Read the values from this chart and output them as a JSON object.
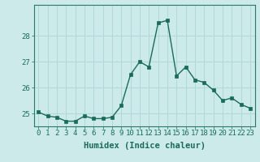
{
  "x": [
    0,
    1,
    2,
    3,
    4,
    5,
    6,
    7,
    8,
    9,
    10,
    11,
    12,
    13,
    14,
    15,
    16,
    17,
    18,
    19,
    20,
    21,
    22,
    23
  ],
  "y": [
    25.05,
    24.9,
    24.85,
    24.7,
    24.7,
    24.9,
    24.8,
    24.8,
    24.85,
    25.3,
    26.5,
    27.0,
    26.8,
    28.5,
    28.6,
    26.45,
    26.8,
    26.3,
    26.2,
    25.9,
    25.5,
    25.6,
    25.35,
    25.2
  ],
  "line_color": "#1a6b5a",
  "marker": "s",
  "marker_size": 2.5,
  "bg_color": "#cceaea",
  "grid_color": "#b0d8d8",
  "xlabel": "Humidex (Indice chaleur)",
  "ylim": [
    24.5,
    29.2
  ],
  "xlim": [
    -0.5,
    23.5
  ],
  "yticks": [
    25,
    26,
    27,
    28
  ],
  "xticks": [
    0,
    1,
    2,
    3,
    4,
    5,
    6,
    7,
    8,
    9,
    10,
    11,
    12,
    13,
    14,
    15,
    16,
    17,
    18,
    19,
    20,
    21,
    22,
    23
  ],
  "tick_fontsize": 6.5,
  "xlabel_fontsize": 7.5
}
